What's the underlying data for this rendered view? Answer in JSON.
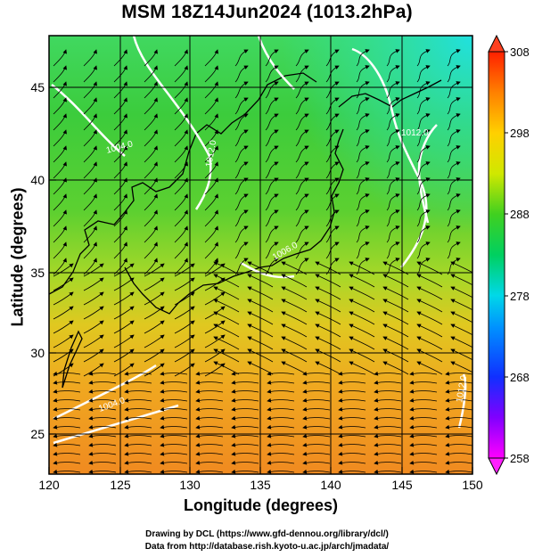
{
  "title": "MSM 18Z14Jun2024 (1013.2hPa)",
  "x_axis": {
    "label": "Longitude (degrees)",
    "ticks": [
      "120",
      "125",
      "130",
      "135",
      "140",
      "145",
      "150"
    ],
    "range": [
      120,
      150
    ]
  },
  "y_axis": {
    "label": "Latitude  (degrees)",
    "ticks": [
      "25",
      "30",
      "35",
      "40",
      "45"
    ],
    "range": [
      22.4,
      47.6
    ]
  },
  "colorbar": {
    "ticks": [
      "258",
      "268",
      "278",
      "288",
      "298",
      "308"
    ],
    "range": [
      258,
      308
    ],
    "colors": [
      "#ff00ff",
      "#6000ff",
      "#0040ff",
      "#00c0ff",
      "#00e8c8",
      "#00d050",
      "#80e000",
      "#f0f000",
      "#ffa000",
      "#ff3000"
    ]
  },
  "isobar_labels": [
    "1004.0",
    "1012.0",
    "1006.0",
    "1012.0",
    "1012.0",
    "1004.0"
  ],
  "credits": {
    "line1": "Drawing by DCL (https://www.gfd-dennou.org/library/dcl/)",
    "line2": "Data from http://database.rish.kyoto-u.ac.jp/arch/jmadata/"
  },
  "field_colors": {
    "cool_north": "#30e090",
    "green_mid": "#40d040",
    "yellow_green": "#b0e030",
    "yellow": "#e8d020",
    "orange": "#f0a020",
    "deep_orange": "#f08020"
  }
}
